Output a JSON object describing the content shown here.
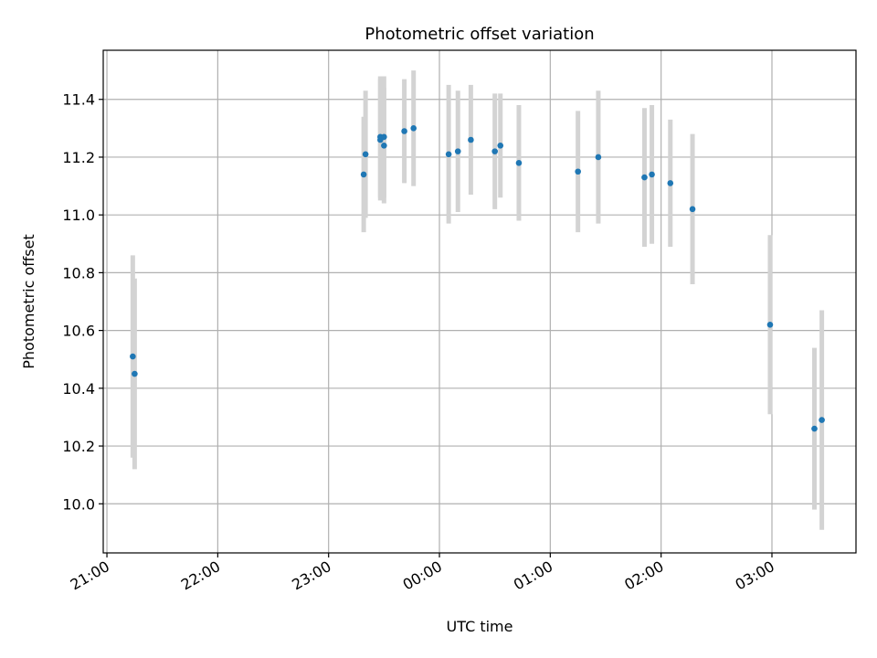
{
  "chart_data": {
    "type": "scatter",
    "title": "Photometric offset variation",
    "xlabel": "UTC time",
    "ylabel": "Photometric offset",
    "x_axis_kind": "time",
    "x_reference_date": "2000-01-01",
    "xlim": [
      "21:00",
      "03:45"
    ],
    "ylim": [
      9.83,
      11.57
    ],
    "x_ticks": [
      "21:00",
      "22:00",
      "23:00",
      "00:00",
      "01:00",
      "02:00",
      "03:00"
    ],
    "y_ticks": [
      10.0,
      10.2,
      10.4,
      10.6,
      10.8,
      11.0,
      11.2,
      11.4
    ],
    "y_tick_labels": [
      "10.0",
      "10.2",
      "10.4",
      "10.6",
      "10.8",
      "11.0",
      "11.2",
      "11.4"
    ],
    "grid": true,
    "marker_color": "#1f77b4",
    "errorbar_color": "#d3d3d3",
    "points": [
      {
        "t": "21:14",
        "y": 10.51,
        "err": 0.35
      },
      {
        "t": "21:15",
        "y": 10.45,
        "err": 0.33
      },
      {
        "t": "23:19",
        "y": 11.14,
        "err": 0.2
      },
      {
        "t": "23:20",
        "y": 11.21,
        "err": 0.22
      },
      {
        "t": "23:28",
        "y": 11.26,
        "err": 0.21
      },
      {
        "t": "23:28",
        "y": 11.27,
        "err": 0.21
      },
      {
        "t": "23:30",
        "y": 11.27,
        "err": 0.21
      },
      {
        "t": "23:30",
        "y": 11.24,
        "err": 0.2
      },
      {
        "t": "23:41",
        "y": 11.29,
        "err": 0.18
      },
      {
        "t": "23:46",
        "y": 11.3,
        "err": 0.2
      },
      {
        "t": "00:05",
        "y": 11.21,
        "err": 0.24
      },
      {
        "t": "00:10",
        "y": 11.22,
        "err": 0.21
      },
      {
        "t": "00:17",
        "y": 11.26,
        "err": 0.19
      },
      {
        "t": "00:30",
        "y": 11.22,
        "err": 0.2
      },
      {
        "t": "00:33",
        "y": 11.24,
        "err": 0.18
      },
      {
        "t": "00:43",
        "y": 11.18,
        "err": 0.2
      },
      {
        "t": "01:15",
        "y": 11.15,
        "err": 0.21
      },
      {
        "t": "01:26",
        "y": 11.2,
        "err": 0.23
      },
      {
        "t": "01:51",
        "y": 11.13,
        "err": 0.24
      },
      {
        "t": "01:55",
        "y": 11.14,
        "err": 0.24
      },
      {
        "t": "02:05",
        "y": 11.11,
        "err": 0.22
      },
      {
        "t": "02:17",
        "y": 11.02,
        "err": 0.26
      },
      {
        "t": "02:59",
        "y": 10.62,
        "err": 0.31
      },
      {
        "t": "03:23",
        "y": 10.26,
        "err": 0.28
      },
      {
        "t": "03:27",
        "y": 10.29,
        "err": 0.38
      }
    ]
  }
}
